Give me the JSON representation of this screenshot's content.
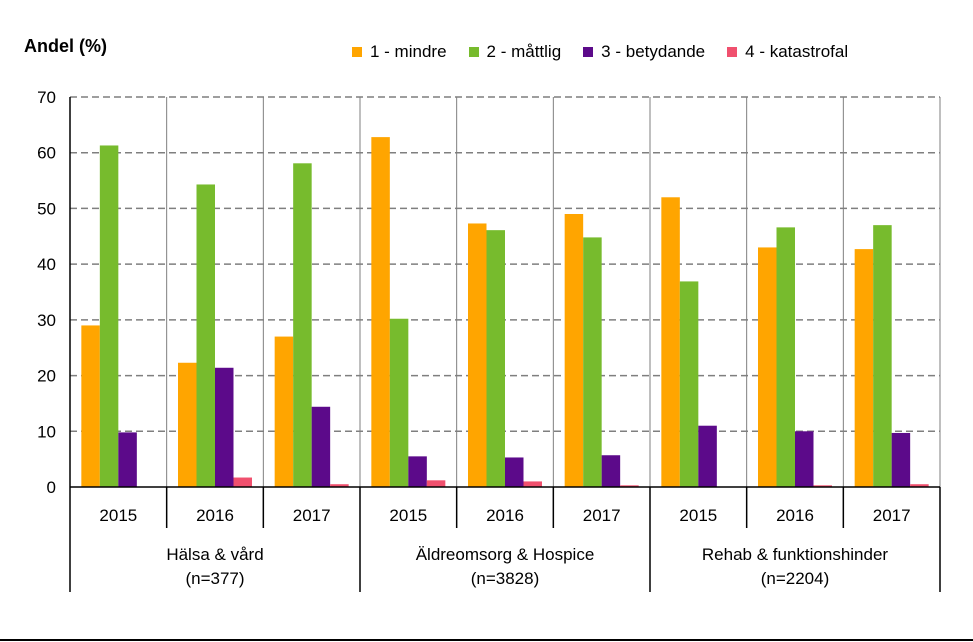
{
  "chart_data": {
    "type": "bar",
    "ylabel": "Andel (%)",
    "ylim": [
      0,
      70
    ],
    "yticks": [
      "0",
      "10",
      "20",
      "30",
      "40",
      "50",
      "60",
      "70"
    ],
    "grid": true,
    "legend_position": "top",
    "groups": [
      {
        "label": "Hälsa & vård",
        "n": "(n=377)",
        "years": [
          "2015",
          "2016",
          "2017"
        ]
      },
      {
        "label": "Äldreomsorg & Hospice",
        "n": "(n=3828)",
        "years": [
          "2015",
          "2016",
          "2017"
        ]
      },
      {
        "label": "Rehab & funktionshinder",
        "n": "(n=2204)",
        "years": [
          "2015",
          "2016",
          "2017"
        ]
      }
    ],
    "categories": [
      "Hälsa & vård 2015",
      "Hälsa & vård 2016",
      "Hälsa & vård 2017",
      "Äldreomsorg & Hospice 2015",
      "Äldreomsorg & Hospice 2016",
      "Äldreomsorg & Hospice 2017",
      "Rehab & funktionshinder 2015",
      "Rehab & funktionshinder 2016",
      "Rehab & funktionshinder 2017"
    ],
    "series": [
      {
        "name": "1 - mindre",
        "color": "#FFA500",
        "values": [
          29,
          22.3,
          27,
          62.8,
          47.3,
          49,
          52,
          43,
          42.7
        ]
      },
      {
        "name": "2 - måttlig",
        "color": "#77BB2D",
        "values": [
          61.3,
          54.3,
          58.1,
          30.2,
          46.1,
          44.8,
          36.9,
          46.6,
          47
        ]
      },
      {
        "name": "3 - betydande",
        "color": "#5C0A8A",
        "values": [
          9.8,
          21.4,
          14.4,
          5.5,
          5.3,
          5.7,
          11,
          10,
          9.7
        ]
      },
      {
        "name": "4 - katastrofal",
        "color": "#F0506E",
        "values": [
          0,
          1.7,
          0.5,
          1.2,
          1,
          0.3,
          0,
          0.3,
          0.5
        ]
      }
    ]
  }
}
